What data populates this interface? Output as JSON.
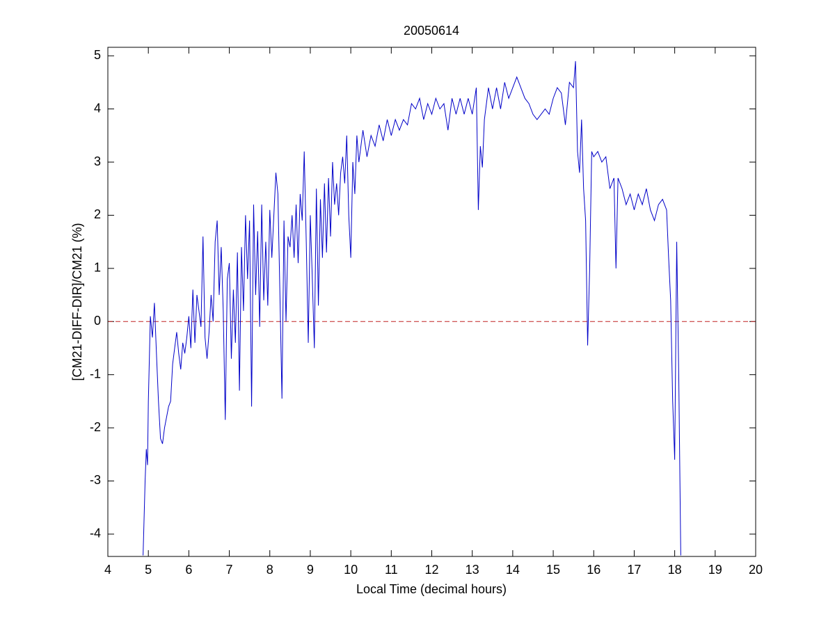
{
  "chart_data": {
    "type": "line",
    "title": "20050614",
    "x_label": "Local Time (decimal hours)",
    "y_label": "[CM21-DIFF-DIR]/CM21 (%)",
    "xlim": [
      4,
      20
    ],
    "ylim": [
      -4.42,
      5.16
    ],
    "xticks": [
      4,
      5,
      6,
      7,
      8,
      9,
      10,
      11,
      12,
      13,
      14,
      15,
      16,
      17,
      18,
      19,
      20
    ],
    "yticks": [
      -4,
      -3,
      -2,
      -1,
      0,
      1,
      2,
      3,
      4,
      5
    ],
    "reference_line": {
      "value": 0,
      "color": "#c02020",
      "dashed": true
    },
    "series": [
      {
        "color": "#0000c8",
        "x": [
          4.87,
          4.92,
          4.95,
          4.98,
          5.0,
          5.05,
          5.1,
          5.15,
          5.2,
          5.25,
          5.3,
          5.35,
          5.4,
          5.5,
          5.55,
          5.6,
          5.65,
          5.7,
          5.75,
          5.8,
          5.85,
          5.9,
          5.95,
          6.0,
          6.05,
          6.1,
          6.15,
          6.2,
          6.25,
          6.3,
          6.35,
          6.4,
          6.45,
          6.5,
          6.55,
          6.6,
          6.65,
          6.7,
          6.75,
          6.8,
          6.85,
          6.9,
          6.95,
          7.0,
          7.05,
          7.1,
          7.15,
          7.2,
          7.25,
          7.3,
          7.35,
          7.4,
          7.45,
          7.5,
          7.55,
          7.6,
          7.65,
          7.7,
          7.75,
          7.8,
          7.85,
          7.9,
          7.95,
          8.0,
          8.05,
          8.1,
          8.15,
          8.2,
          8.25,
          8.3,
          8.35,
          8.4,
          8.45,
          8.5,
          8.55,
          8.6,
          8.65,
          8.7,
          8.75,
          8.8,
          8.85,
          8.9,
          8.95,
          9.0,
          9.05,
          9.1,
          9.15,
          9.2,
          9.25,
          9.3,
          9.35,
          9.4,
          9.45,
          9.5,
          9.55,
          9.6,
          9.65,
          9.7,
          9.75,
          9.8,
          9.85,
          9.9,
          9.95,
          10.0,
          10.05,
          10.1,
          10.15,
          10.2,
          10.3,
          10.4,
          10.5,
          10.6,
          10.7,
          10.8,
          10.9,
          11.0,
          11.1,
          11.2,
          11.3,
          11.4,
          11.5,
          11.6,
          11.7,
          11.8,
          11.9,
          12.0,
          12.1,
          12.2,
          12.3,
          12.4,
          12.5,
          12.6,
          12.7,
          12.8,
          12.9,
          13.0,
          13.1,
          13.15,
          13.2,
          13.25,
          13.3,
          13.4,
          13.5,
          13.6,
          13.7,
          13.8,
          13.9,
          14.0,
          14.1,
          14.2,
          14.3,
          14.4,
          14.5,
          14.6,
          14.7,
          14.8,
          14.9,
          15.0,
          15.1,
          15.2,
          15.3,
          15.4,
          15.5,
          15.55,
          15.6,
          15.65,
          15.7,
          15.75,
          15.8,
          15.85,
          15.9,
          15.95,
          16.0,
          16.1,
          16.2,
          16.3,
          16.4,
          16.5,
          16.55,
          16.6,
          16.7,
          16.8,
          16.9,
          17.0,
          17.1,
          17.2,
          17.3,
          17.4,
          17.5,
          17.6,
          17.7,
          17.8,
          17.85,
          17.9,
          17.95,
          18.0,
          18.05,
          18.1,
          18.15
        ],
        "values": [
          -4.4,
          -3.0,
          -2.4,
          -2.7,
          -1.5,
          0.1,
          -0.3,
          0.35,
          -0.6,
          -1.5,
          -2.2,
          -2.3,
          -2.0,
          -1.6,
          -1.5,
          -0.8,
          -0.5,
          -0.2,
          -0.6,
          -0.9,
          -0.4,
          -0.6,
          -0.3,
          0.1,
          -0.5,
          0.6,
          -0.4,
          0.5,
          0.2,
          -0.1,
          1.6,
          -0.3,
          -0.7,
          -0.2,
          0.5,
          0.0,
          1.5,
          1.9,
          0.5,
          1.4,
          0.2,
          -1.85,
          0.8,
          1.1,
          -0.7,
          0.6,
          -0.4,
          1.3,
          -1.3,
          1.4,
          0.2,
          2.0,
          0.8,
          1.9,
          -1.6,
          2.2,
          0.5,
          1.7,
          -0.1,
          2.2,
          0.4,
          1.5,
          0.3,
          2.1,
          1.2,
          2.0,
          2.8,
          2.4,
          0.5,
          -1.45,
          1.9,
          0.0,
          1.6,
          1.4,
          2.0,
          1.2,
          2.2,
          1.1,
          2.4,
          1.9,
          3.2,
          1.5,
          -0.4,
          2.0,
          0.8,
          -0.5,
          2.5,
          0.3,
          2.3,
          1.2,
          2.6,
          1.3,
          2.7,
          1.6,
          3.0,
          2.2,
          2.6,
          2.0,
          2.8,
          3.1,
          2.6,
          3.5,
          2.0,
          1.2,
          3.0,
          2.4,
          3.5,
          3.0,
          3.6,
          3.1,
          3.5,
          3.3,
          3.7,
          3.4,
          3.8,
          3.5,
          3.8,
          3.6,
          3.8,
          3.7,
          4.1,
          4.0,
          4.2,
          3.8,
          4.1,
          3.9,
          4.2,
          4.0,
          4.1,
          3.6,
          4.2,
          3.9,
          4.2,
          3.9,
          4.2,
          3.9,
          4.4,
          2.1,
          3.3,
          2.9,
          3.8,
          4.4,
          4.0,
          4.4,
          4.0,
          4.5,
          4.2,
          4.4,
          4.6,
          4.4,
          4.2,
          4.1,
          3.9,
          3.8,
          3.9,
          4.0,
          3.9,
          4.2,
          4.4,
          4.3,
          3.7,
          4.5,
          4.4,
          4.9,
          3.2,
          2.8,
          3.8,
          2.5,
          1.9,
          -0.45,
          1.0,
          3.2,
          3.1,
          3.2,
          3.0,
          3.1,
          2.5,
          2.7,
          1.0,
          2.7,
          2.5,
          2.2,
          2.4,
          2.1,
          2.4,
          2.2,
          2.5,
          2.1,
          1.9,
          2.2,
          2.3,
          2.1,
          1.2,
          0.4,
          -1.5,
          -2.6,
          1.5,
          -1.0,
          -4.4
        ]
      }
    ]
  }
}
